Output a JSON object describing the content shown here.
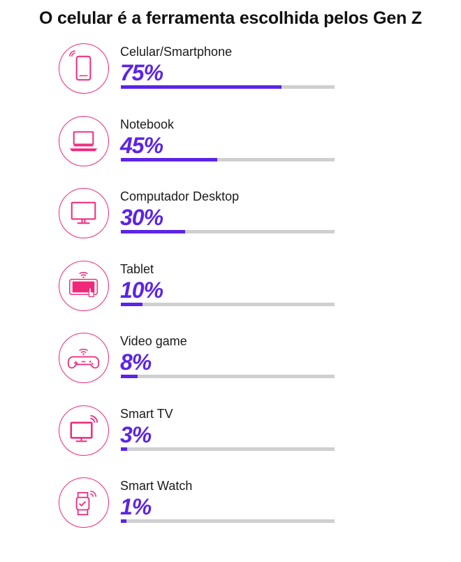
{
  "title": "O celular é a ferramenta escolhida pelos Gen Z",
  "colors": {
    "accent": "#5b24e6",
    "icon": "#f0287a",
    "track": "#cfcfcf"
  },
  "chart_data": {
    "type": "bar",
    "orientation": "horizontal",
    "title": "O celular é a ferramenta escolhida pelos Gen Z",
    "categories": [
      "Celular/Smartphone",
      "Notebook",
      "Computador Desktop",
      "Tablet",
      "Video game",
      "Smart TV",
      "Smart Watch"
    ],
    "values": [
      75,
      45,
      30,
      10,
      8,
      3,
      1
    ],
    "value_labels": [
      "75%",
      "45%",
      "30%",
      "10%",
      "8%",
      "3%",
      "1%"
    ],
    "icons": [
      "smartphone-icon",
      "laptop-icon",
      "desktop-monitor-icon",
      "tablet-icon",
      "gamepad-icon",
      "smart-tv-icon",
      "smartwatch-icon"
    ],
    "xlim": [
      0,
      100
    ],
    "grid": false
  }
}
